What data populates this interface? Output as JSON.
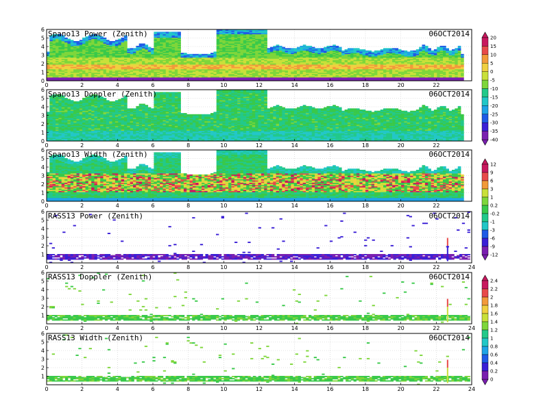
{
  "colors": {
    "background": "#ffffff",
    "grid": "#c8c8c8",
    "frame": "#000000",
    "colormap": [
      "#7a1fb0",
      "#3a1fd6",
      "#1f5be6",
      "#1fa3e6",
      "#22c7c7",
      "#22c98a",
      "#39c94a",
      "#7ed63a",
      "#c9e03a",
      "#f0d040",
      "#f29a3a",
      "#e84a4a",
      "#c8185e"
    ]
  },
  "chart_data": [
    {
      "type": "heatmap",
      "title": "Spano13 Power (Zenith)",
      "date": "06OCT2014",
      "x_range": [
        0,
        24
      ],
      "y_range": [
        0,
        6
      ],
      "grid": true,
      "x_ticks": [
        "0",
        "2",
        "4",
        "6",
        "8",
        "10",
        "12",
        "14",
        "16",
        "18",
        "20",
        "22"
      ],
      "y_ticks": [
        "0",
        "1",
        "2",
        "3",
        "4",
        "5",
        "6"
      ],
      "colorbar": "power",
      "pattern": "spano_power"
    },
    {
      "type": "heatmap",
      "title": "Spano13 Doppler (Zenith)",
      "date": "06OCT2014",
      "x_range": [
        0,
        24
      ],
      "y_range": [
        0,
        6
      ],
      "grid": true,
      "x_ticks": [
        "0",
        "2",
        "4",
        "6",
        "8",
        "10",
        "12",
        "14",
        "16",
        "18",
        "20",
        "22"
      ],
      "y_ticks": [
        "0",
        "1",
        "2",
        "3",
        "4",
        "5",
        "6"
      ],
      "colorbar": "power",
      "pattern": "spano_doppler"
    },
    {
      "type": "heatmap",
      "title": "Spano13 Width (Zenith)",
      "date": "06OCT2014",
      "x_range": [
        0,
        24
      ],
      "y_range": [
        0,
        6
      ],
      "grid": true,
      "x_ticks": [
        "0",
        "2",
        "4",
        "6",
        "8",
        "10",
        "12",
        "14",
        "16",
        "18",
        "20",
        "22"
      ],
      "y_ticks": [
        "0",
        "1",
        "2",
        "3",
        "4",
        "5",
        "6"
      ],
      "colorbar": "doppler",
      "pattern": "spano_width"
    },
    {
      "type": "heatmap",
      "title": "RASS13 Power (Zenith)",
      "date": "06OCT2014",
      "x_range": [
        0,
        24
      ],
      "y_range": [
        0,
        6
      ],
      "grid": true,
      "x_ticks": [
        "0",
        "2",
        "4",
        "6",
        "8",
        "10",
        "12",
        "14",
        "16",
        "18",
        "20",
        "22",
        "24"
      ],
      "y_ticks": [
        "1",
        "2",
        "3",
        "4",
        "5",
        "6"
      ],
      "colorbar": "doppler",
      "pattern": "rass_power"
    },
    {
      "type": "heatmap",
      "title": "RASS13 Doppler (Zenith)",
      "date": "06OCT2014",
      "x_range": [
        0,
        24
      ],
      "y_range": [
        0,
        6
      ],
      "grid": true,
      "x_ticks": [
        "0",
        "2",
        "4",
        "6",
        "8",
        "10",
        "12",
        "14",
        "16",
        "18",
        "20",
        "22",
        "24"
      ],
      "y_ticks": [
        "1",
        "2",
        "3",
        "4",
        "5",
        "6"
      ],
      "colorbar": "width",
      "pattern": "rass_doppler"
    },
    {
      "type": "heatmap",
      "title": "RASS13 Width (Zenith)",
      "date": "06OCT2014",
      "x_range": [
        0,
        24
      ],
      "y_range": [
        0,
        6
      ],
      "grid": true,
      "x_ticks": [
        "0",
        "2",
        "4",
        "6",
        "8",
        "10",
        "12",
        "14",
        "16",
        "18",
        "20",
        "22",
        "24"
      ],
      "y_ticks": [
        "1",
        "2",
        "3",
        "4",
        "5",
        "6"
      ],
      "colorbar": "width",
      "pattern": "rass_width"
    }
  ],
  "colorbars": {
    "power": {
      "labels": [
        "20",
        "15",
        "10",
        "5",
        "0",
        "-5",
        "-10",
        "-15",
        "-20",
        "-25",
        "-30",
        "-35",
        "-40"
      ]
    },
    "doppler": {
      "labels": [
        "12",
        "9",
        "6",
        "3",
        "1",
        "0.2",
        "-0.2",
        "-1",
        "-3",
        "-6",
        "-9",
        "-12"
      ]
    },
    "width": {
      "labels": [
        "2.4",
        "2.2",
        "2",
        "1.8",
        "1.6",
        "1.4",
        "1.2",
        "1",
        "0.8",
        "0.6",
        "0.4",
        "0.2",
        "0"
      ]
    }
  }
}
